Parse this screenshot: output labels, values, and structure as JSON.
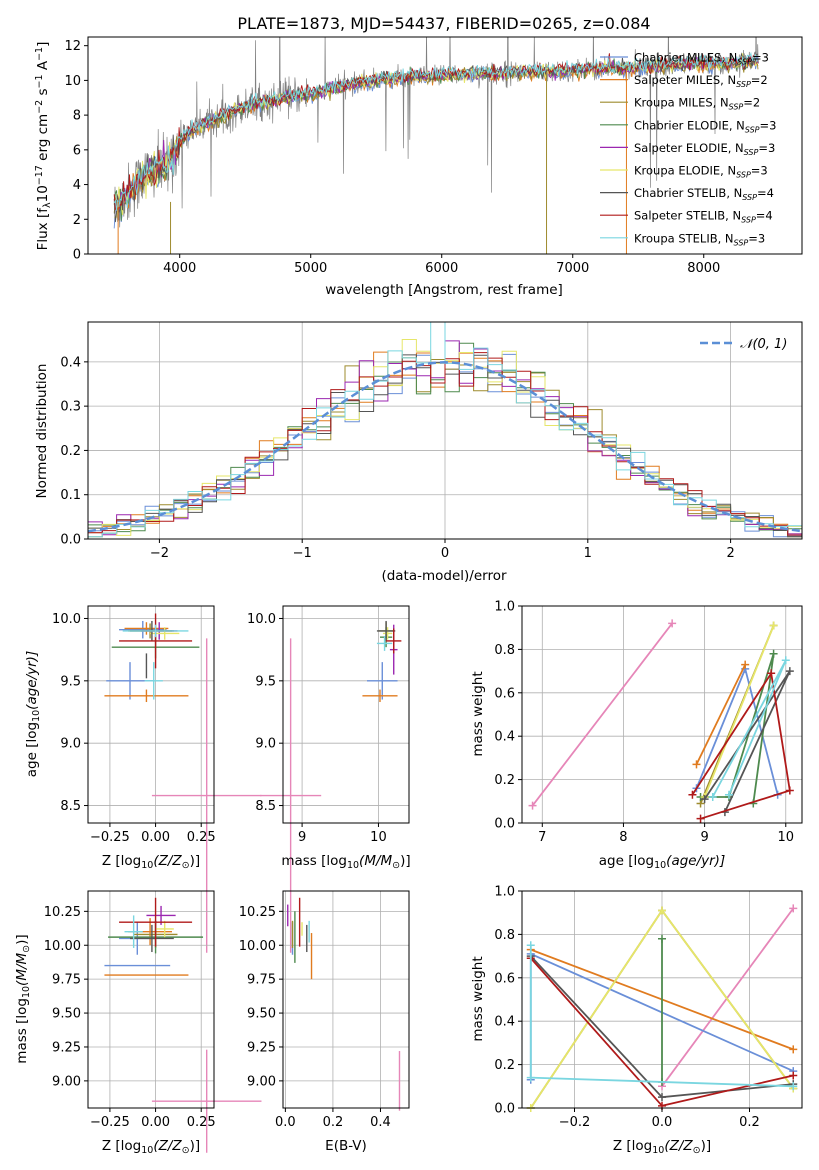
{
  "figure_title": "PLATE=1873, MJD=54437, FIBERID=0265, z=0.084",
  "fit_colors": {
    "Chabrier MILES": "#6a8fd8",
    "Salpeter MILES": "#e07b1f",
    "Kroupa MILES": "#9e8b2e",
    "Chabrier ELODIE": "#4e8a4e",
    "Salpeter ELODIE": "#9b27b0",
    "Kroupa ELODIE": "#e6e66a",
    "Chabrier STELIB": "#555555",
    "Salpeter STELIB": "#b01a1a",
    "Kroupa STELIB": "#7ad6e0",
    "extra": "#e686b8",
    "data": "#808080"
  },
  "chart_data": [
    {
      "id": "spectrum",
      "type": "line",
      "xlabel": "wavelength [Angstrom, rest frame]",
      "ylabel_main": "Flux [f",
      "ylabel_sub": "λ",
      "ylabel_rest": "10",
      "ylabel_exp": "−17",
      "ylabel_tail": " erg cm",
      "ylabel_exp2": "−2",
      "ylabel_tail2": " s",
      "ylabel_exp3": "−1",
      "ylabel_tail3": " A",
      "ylabel_exp4": "−1",
      "ylabel_end": "]",
      "xlim": [
        3300,
        8750
      ],
      "ylim": [
        0,
        12.5
      ],
      "xticks": [
        4000,
        5000,
        6000,
        7000,
        8000
      ],
      "yticks": [
        0,
        2,
        4,
        6,
        8,
        10,
        12
      ],
      "continuum": {
        "x": [
          3500,
          3600,
          3700,
          3800,
          3900,
          4000,
          4100,
          4200,
          4300,
          4400,
          4500,
          4600,
          4700,
          4800,
          4900,
          5000,
          5200,
          5400,
          5600,
          5800,
          6000,
          6200,
          6400,
          6600,
          6800,
          7000,
          7200,
          7400,
          7600,
          7800,
          8000,
          8200,
          8400
        ],
        "y": [
          2.6,
          3.4,
          4.3,
          4.8,
          5.0,
          6.4,
          7.2,
          7.6,
          7.8,
          8.2,
          8.5,
          8.7,
          8.8,
          9.0,
          9.1,
          9.2,
          9.6,
          9.9,
          10.1,
          10.2,
          10.3,
          10.4,
          10.4,
          10.5,
          10.5,
          10.6,
          10.7,
          10.7,
          10.8,
          10.9,
          11.0,
          11.0,
          11.1
        ]
      },
      "legend": [
        {
          "label": "Chabrier MILES, N",
          "sub": "SSP",
          "tail": "=3",
          "color": "#6a8fd8"
        },
        {
          "label": "Salpeter MILES, N",
          "sub": "SSP",
          "tail": "=2",
          "color": "#e07b1f"
        },
        {
          "label": "Kroupa MILES, N",
          "sub": "SSP",
          "tail": "=2",
          "color": "#9e8b2e"
        },
        {
          "label": "Chabrier ELODIE, N",
          "sub": "SSP",
          "tail": "=3",
          "color": "#4e8a4e"
        },
        {
          "label": "Salpeter ELODIE, N",
          "sub": "SSP",
          "tail": "=3",
          "color": "#9b27b0"
        },
        {
          "label": "Kroupa ELODIE, N",
          "sub": "SSP",
          "tail": "=3",
          "color": "#e6e66a"
        },
        {
          "label": "Chabrier STELIB, N",
          "sub": "SSP",
          "tail": "=4",
          "color": "#555555"
        },
        {
          "label": "Salpeter STELIB, N",
          "sub": "SSP",
          "tail": "=4",
          "color": "#b01a1a"
        },
        {
          "label": "Kroupa STELIB, N",
          "sub": "SSP",
          "tail": "=3",
          "color": "#7ad6e0"
        }
      ]
    },
    {
      "id": "residuals",
      "type": "line",
      "xlabel": "(data-model)/error",
      "ylabel": "Normed distribution",
      "xlim": [
        -2.5,
        2.5
      ],
      "ylim": [
        0,
        0.49
      ],
      "xticks": [
        -2,
        -1,
        0,
        1,
        2
      ],
      "xticklabels": [
        "−2",
        "−1",
        "0",
        "1",
        "2"
      ],
      "yticks": [
        0.0,
        0.1,
        0.2,
        0.3,
        0.4
      ],
      "yticklabels": [
        "0.0",
        "0.1",
        "0.2",
        "0.3",
        "0.4"
      ],
      "grid": true,
      "legend_label": "𝒩(0, 1)",
      "legend_color": "#5b8fd6"
    },
    {
      "id": "z_age",
      "type": "scatter",
      "xlabel_pre": "Z [log",
      "xlabel_sub": "10",
      "xlabel_post": "(Z/Z",
      "xlabel_sun": "⊙",
      "xlabel_end": ")]",
      "ylabel_pre": "age  [log",
      "ylabel_sub": "10",
      "ylabel_post": "(age/yr)]",
      "xlim": [
        -0.37,
        0.32
      ],
      "ylim": [
        8.36,
        10.1
      ],
      "xticks": [
        -0.25,
        0.0,
        0.25
      ],
      "xticklabels": [
        "−0.25",
        "0.00",
        "0.25"
      ],
      "yticks": [
        8.5,
        9.0,
        9.5,
        10.0
      ],
      "yticklabels": [
        "8.5",
        "9.0",
        "9.5",
        "10.0"
      ],
      "points": [
        {
          "x": -0.07,
          "y": 9.91,
          "xe": 0.13,
          "ye": 0.07,
          "color": "#6a8fd8"
        },
        {
          "x": -0.05,
          "y": 9.92,
          "xe": 0.12,
          "ye": 0.05,
          "color": "#e07b1f"
        },
        {
          "x": -0.03,
          "y": 9.9,
          "xe": 0.12,
          "ye": 0.06,
          "color": "#9e8b2e"
        },
        {
          "x": 0.0,
          "y": 9.77,
          "xe": 0.24,
          "ye": 0.09,
          "color": "#4e8a4e"
        },
        {
          "x": 0.02,
          "y": 9.9,
          "xe": 0.1,
          "ye": 0.07,
          "color": "#9b27b0"
        },
        {
          "x": 0.05,
          "y": 9.88,
          "xe": 0.08,
          "ye": 0.05,
          "color": "#e6e66a"
        },
        {
          "x": -0.02,
          "y": 9.9,
          "xe": 0.12,
          "ye": 0.08,
          "color": "#555555"
        },
        {
          "x": 0.0,
          "y": 9.82,
          "xe": 0.2,
          "ye": 0.22,
          "color": "#b01a1a"
        },
        {
          "x": 0.0,
          "y": 9.9,
          "xe": 0.18,
          "ye": 0.05,
          "color": "#7ad6e0"
        },
        {
          "x": -0.14,
          "y": 9.5,
          "xe": 0.13,
          "ye": 0.15,
          "color": "#6a8fd8"
        },
        {
          "x": -0.05,
          "y": 9.38,
          "xe": 0.23,
          "ye": 0.05,
          "color": "#e07b1f"
        },
        {
          "x": -0.01,
          "y": 9.5,
          "xe": 0.05,
          "ye": 0.15,
          "color": "#7ad6e0"
        },
        {
          "x": -0.05,
          "y": 9.62,
          "xe": 0.0,
          "ye": 0.1,
          "color": "#555555"
        },
        {
          "x": 0.28,
          "y": 8.58,
          "xe": 0.3,
          "ye": 1.26,
          "color": "#e686b8"
        }
      ]
    },
    {
      "id": "mass_age",
      "type": "scatter",
      "xlabel_pre": "mass [log",
      "xlabel_sub": "10",
      "xlabel_post": "(M/M",
      "xlabel_sun": "⊙",
      "xlabel_end": ")]",
      "xlim": [
        8.75,
        10.4
      ],
      "ylim": [
        8.36,
        10.1
      ],
      "xticks": [
        9.0,
        10.0
      ],
      "xticklabels": [
        "9",
        "10"
      ],
      "yticks": [
        8.5,
        9.0,
        9.5,
        10.0
      ],
      "yticklabels": [
        "8.5",
        "9.0",
        "9.5",
        "10.0"
      ],
      "points": [
        {
          "x": 10.05,
          "y": 9.5,
          "xe": 0.2,
          "ye": 0.15,
          "color": "#6a8fd8"
        },
        {
          "x": 10.02,
          "y": 9.38,
          "xe": 0.23,
          "ye": 0.05,
          "color": "#e07b1f"
        },
        {
          "x": 10.1,
          "y": 9.9,
          "xe": 0.1,
          "ye": 0.07,
          "color": "#9e8b2e"
        },
        {
          "x": 10.1,
          "y": 9.85,
          "xe": 0.08,
          "ye": 0.08,
          "color": "#4e8a4e"
        },
        {
          "x": 10.2,
          "y": 9.75,
          "xe": 0.05,
          "ye": 0.2,
          "color": "#9b27b0"
        },
        {
          "x": 10.12,
          "y": 9.88,
          "xe": 0.06,
          "ye": 0.05,
          "color": "#e6e66a"
        },
        {
          "x": 10.1,
          "y": 9.9,
          "xe": 0.12,
          "ye": 0.08,
          "color": "#555555"
        },
        {
          "x": 10.2,
          "y": 9.82,
          "xe": 0.1,
          "ye": 0.1,
          "color": "#b01a1a"
        },
        {
          "x": 10.08,
          "y": 9.8,
          "xe": 0.1,
          "ye": 0.06,
          "color": "#7ad6e0"
        },
        {
          "x": 8.85,
          "y": 8.58,
          "xe": 0.4,
          "ye": 1.26,
          "color": "#e686b8"
        }
      ]
    },
    {
      "id": "age_weight",
      "type": "line",
      "xlabel_pre": "age  [log",
      "xlabel_sub": "10",
      "xlabel_post": "(age/yr)]",
      "ylabel": "mass weight",
      "xlim": [
        6.75,
        10.2
      ],
      "ylim": [
        0,
        1.0
      ],
      "xticks": [
        7,
        8,
        9,
        10
      ],
      "yticks": [
        0.0,
        0.2,
        0.4,
        0.6,
        0.8,
        1.0
      ],
      "yticklabels": [
        "0.0",
        "0.2",
        "0.4",
        "0.6",
        "0.8",
        "1.0"
      ],
      "series": [
        {
          "x": [
            6.88,
            8.6
          ],
          "y": [
            0.08,
            0.92
          ],
          "color": "#e686b8"
        },
        {
          "x": [
            8.9,
            9.5,
            9.9
          ],
          "y": [
            0.16,
            0.71,
            0.13
          ],
          "color": "#6a8fd8"
        },
        {
          "x": [
            8.9,
            9.5
          ],
          "y": [
            0.27,
            0.73
          ],
          "color": "#e07b1f"
        },
        {
          "x": [
            8.95,
            9.85
          ],
          "y": [
            0.09,
            0.91
          ],
          "color": "#9e8b2e"
        },
        {
          "x": [
            8.95,
            9.3,
            9.85,
            9.6
          ],
          "y": [
            0.12,
            0.12,
            0.78,
            0.09
          ],
          "color": "#4e8a4e"
        },
        {
          "x": [
            9.0,
            9.85
          ],
          "y": [
            0.12,
            0.91
          ],
          "color": "#e6e66a"
        },
        {
          "x": [
            9.25,
            10.05,
            9.0
          ],
          "y": [
            0.05,
            0.7,
            0.11
          ],
          "color": "#555555"
        },
        {
          "x": [
            8.85,
            9.82,
            10.05,
            8.95
          ],
          "y": [
            0.13,
            0.69,
            0.15,
            0.02
          ],
          "color": "#b01a1a"
        },
        {
          "x": [
            9.1,
            10.0,
            9.3
          ],
          "y": [
            0.12,
            0.75,
            0.13
          ],
          "color": "#7ad6e0"
        }
      ]
    },
    {
      "id": "z_mass",
      "type": "scatter",
      "xlabel_pre": "Z [log",
      "xlabel_sub": "10",
      "xlabel_post": "(Z/Z",
      "xlabel_sun": "⊙",
      "xlabel_end": ")]",
      "ylabel_pre": "mass [log",
      "ylabel_sub": "10",
      "ylabel_post": "(M/M",
      "ylabel_sun": "⊙",
      "ylabel_end": ")]",
      "xlim": [
        -0.37,
        0.32
      ],
      "ylim": [
        8.8,
        10.4
      ],
      "xticks": [
        -0.25,
        0.0,
        0.25
      ],
      "xticklabels": [
        "−0.25",
        "0.00",
        "0.25"
      ],
      "yticks": [
        9.0,
        9.25,
        9.5,
        9.75,
        10.0,
        10.25
      ],
      "yticklabels": [
        "9.00",
        "9.25",
        "9.50",
        "9.75",
        "10.00",
        "10.25"
      ],
      "points": [
        {
          "x": -0.1,
          "y": 10.05,
          "xe": 0.1,
          "ye": 0.12,
          "color": "#6a8fd8"
        },
        {
          "x": -0.03,
          "y": 10.1,
          "xe": 0.12,
          "ye": 0.1,
          "color": "#e07b1f"
        },
        {
          "x": 0.0,
          "y": 10.08,
          "xe": 0.12,
          "ye": 0.1,
          "color": "#9e8b2e"
        },
        {
          "x": 0.0,
          "y": 10.06,
          "xe": 0.26,
          "ye": 0.12,
          "color": "#4e8a4e"
        },
        {
          "x": 0.03,
          "y": 10.22,
          "xe": 0.08,
          "ye": 0.07,
          "color": "#9b27b0"
        },
        {
          "x": 0.05,
          "y": 10.12,
          "xe": 0.05,
          "ye": 0.06,
          "color": "#e6e66a"
        },
        {
          "x": -0.02,
          "y": 10.05,
          "xe": 0.12,
          "ye": 0.1,
          "color": "#555555"
        },
        {
          "x": 0.0,
          "y": 10.17,
          "xe": 0.2,
          "ye": 0.18,
          "color": "#b01a1a"
        },
        {
          "x": -0.12,
          "y": 10.1,
          "xe": 0.05,
          "ye": 0.12,
          "color": "#7ad6e0"
        },
        {
          "x": -0.1,
          "y": 9.85,
          "xe": 0.18,
          "ye": 0.0,
          "color": "#6a8fd8"
        },
        {
          "x": -0.05,
          "y": 9.78,
          "xe": 0.23,
          "ye": 0.0,
          "color": "#e07b1f"
        },
        {
          "x": 0.28,
          "y": 8.85,
          "xe": 0.3,
          "ye": 0.38,
          "color": "#e686b8"
        }
      ]
    },
    {
      "id": "ebv_mass",
      "type": "scatter",
      "xlabel": "E(B-V)",
      "xlim": [
        -0.01,
        0.52
      ],
      "ylim": [
        8.8,
        10.4
      ],
      "xticks": [
        0.0,
        0.2,
        0.4
      ],
      "xticklabels": [
        "0.0",
        "0.2",
        "0.4"
      ],
      "yticks": [
        9.0,
        9.25,
        9.5,
        9.75,
        10.0,
        10.25
      ],
      "yticklabels": [
        "9.00",
        "9.25",
        "9.50",
        "9.75",
        "10.00",
        "10.25"
      ],
      "points": [
        {
          "x": 0.03,
          "y": 10.05,
          "ye": 0.12,
          "color": "#6a8fd8"
        },
        {
          "x": 0.11,
          "y": 9.92,
          "ye": 0.17,
          "color": "#e07b1f"
        },
        {
          "x": 0.03,
          "y": 10.08,
          "ye": 0.1,
          "color": "#9e8b2e"
        },
        {
          "x": 0.04,
          "y": 10.06,
          "ye": 0.19,
          "color": "#4e8a4e"
        },
        {
          "x": 0.01,
          "y": 10.22,
          "ye": 0.08,
          "color": "#9b27b0"
        },
        {
          "x": 0.07,
          "y": 10.12,
          "ye": 0.05,
          "color": "#e6e66a"
        },
        {
          "x": 0.09,
          "y": 10.05,
          "ye": 0.1,
          "color": "#555555"
        },
        {
          "x": 0.06,
          "y": 10.17,
          "ye": 0.18,
          "color": "#b01a1a"
        },
        {
          "x": 0.1,
          "y": 10.1,
          "ye": 0.08,
          "color": "#7ad6e0"
        },
        {
          "x": 0.48,
          "y": 9.0,
          "ye": 0.22,
          "color": "#e686b8"
        }
      ]
    },
    {
      "id": "z_weight",
      "type": "line",
      "xlabel_pre": "Z [log",
      "xlabel_sub": "10",
      "xlabel_post": "(Z/Z",
      "xlabel_sun": "⊙",
      "xlabel_end": ")]",
      "ylabel": "mass weight",
      "xlim": [
        -0.32,
        0.32
      ],
      "ylim": [
        0,
        1.0
      ],
      "xticks": [
        -0.2,
        0.0,
        0.2
      ],
      "xticklabels": [
        "−0.2",
        "0.0",
        "0.2"
      ],
      "yticks": [
        0.0,
        0.2,
        0.4,
        0.6,
        0.8,
        1.0
      ],
      "yticklabels": [
        "0.0",
        "0.2",
        "0.4",
        "0.6",
        "0.8",
        "1.0"
      ],
      "series": [
        {
          "x": [
            0.0,
            0.3
          ],
          "y": [
            0.1,
            0.92
          ],
          "color": "#e686b8"
        },
        {
          "x": [
            -0.3,
            0.3
          ],
          "y": [
            0.73,
            0.27
          ],
          "color": "#e07b1f"
        },
        {
          "x": [
            -0.3,
            -0.3,
            0.3
          ],
          "y": [
            0.13,
            0.71,
            0.17
          ],
          "color": "#6a8fd8"
        },
        {
          "x": [
            -0.3,
            0.0,
            0.3
          ],
          "y": [
            0.0,
            0.91,
            0.09
          ],
          "color": "#9e8b2e"
        },
        {
          "x": [
            -0.3,
            0.0,
            0.3
          ],
          "y": [
            0.0,
            0.91,
            0.09
          ],
          "color": "#e6e66a"
        },
        {
          "x": [
            0.0,
            0.0
          ],
          "y": [
            0.12,
            0.78
          ],
          "color": "#4e8a4e"
        },
        {
          "x": [
            -0.3,
            0.0,
            0.3
          ],
          "y": [
            0.7,
            0.05,
            0.11
          ],
          "color": "#555555"
        },
        {
          "x": [
            -0.3,
            0.0,
            0.3
          ],
          "y": [
            0.69,
            0.01,
            0.15
          ],
          "color": "#b01a1a"
        },
        {
          "x": [
            -0.3,
            -0.3,
            0.3
          ],
          "y": [
            0.75,
            0.14,
            0.1
          ],
          "color": "#7ad6e0"
        }
      ]
    }
  ]
}
